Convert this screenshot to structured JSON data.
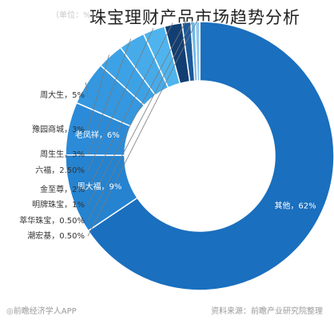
{
  "title": "珠宝理财产品市场趋势分析",
  "unit_hint": "（单位：%）",
  "footer": {
    "left": "◎前瞻经济学人APP",
    "right": "资料来源：前瞻产业研究院整理"
  },
  "chart_data": {
    "type": "pie",
    "donut": true,
    "slices": [
      {
        "name": "其他",
        "label": "其他，62%",
        "value": 62,
        "color": "#1a6fbe"
      },
      {
        "name": "周大福",
        "label": "周大福，9%",
        "value": 9,
        "color": "#2583d0"
      },
      {
        "name": "老凤祥",
        "label": "老凤祥，6%",
        "value": 6,
        "color": "#2b8bd8"
      },
      {
        "name": "周大生",
        "label": "周大生，5%",
        "value": 5,
        "color": "#3497df"
      },
      {
        "name": "豫园商城",
        "label": "豫园商城，3%",
        "value": 3,
        "color": "#3da2e5"
      },
      {
        "name": "周生生",
        "label": "周生生，3%",
        "value": 3,
        "color": "#47abea"
      },
      {
        "name": "六福",
        "label": "六福，2.50%",
        "value": 2.5,
        "color": "#4fb4ee"
      },
      {
        "name": "金至尊",
        "label": "金至尊，2%",
        "value": 2,
        "color": "#123e72"
      },
      {
        "name": "明牌珠宝",
        "label": "明牌珠宝，1%",
        "value": 1,
        "color": "#1c5a9a"
      },
      {
        "name": "萃华珠宝",
        "label": "萃华珠宝，0.50%",
        "value": 0.5,
        "color": "#6fb8e8"
      },
      {
        "name": "潮宏基",
        "label": "潮宏基，0.50%",
        "value": 0.5,
        "color": "#8fc8ee"
      }
    ]
  }
}
